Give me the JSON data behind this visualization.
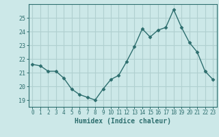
{
  "x": [
    0,
    1,
    2,
    3,
    4,
    5,
    6,
    7,
    8,
    9,
    10,
    11,
    12,
    13,
    14,
    15,
    16,
    17,
    18,
    19,
    20,
    21,
    22,
    23
  ],
  "y": [
    21.6,
    21.5,
    21.1,
    21.1,
    20.6,
    19.8,
    19.4,
    19.2,
    19.0,
    19.8,
    20.5,
    20.8,
    21.8,
    22.9,
    24.2,
    23.6,
    24.1,
    24.3,
    25.6,
    24.3,
    23.2,
    22.5,
    21.1,
    20.5
  ],
  "line_color": "#2d6e6e",
  "marker": "D",
  "marker_size": 2.5,
  "bg_color": "#cce8e8",
  "grid_color": "#b0d0d0",
  "xlabel": "Humidex (Indice chaleur)",
  "ylim": [
    18.5,
    26.0
  ],
  "xlim": [
    -0.5,
    23.5
  ],
  "yticks": [
    19,
    20,
    21,
    22,
    23,
    24,
    25
  ],
  "xticks": [
    0,
    1,
    2,
    3,
    4,
    5,
    6,
    7,
    8,
    9,
    10,
    11,
    12,
    13,
    14,
    15,
    16,
    17,
    18,
    19,
    20,
    21,
    22,
    23
  ],
  "axis_color": "#2d6e6e",
  "tick_color": "#2d6e6e",
  "label_color": "#2d6e6e"
}
